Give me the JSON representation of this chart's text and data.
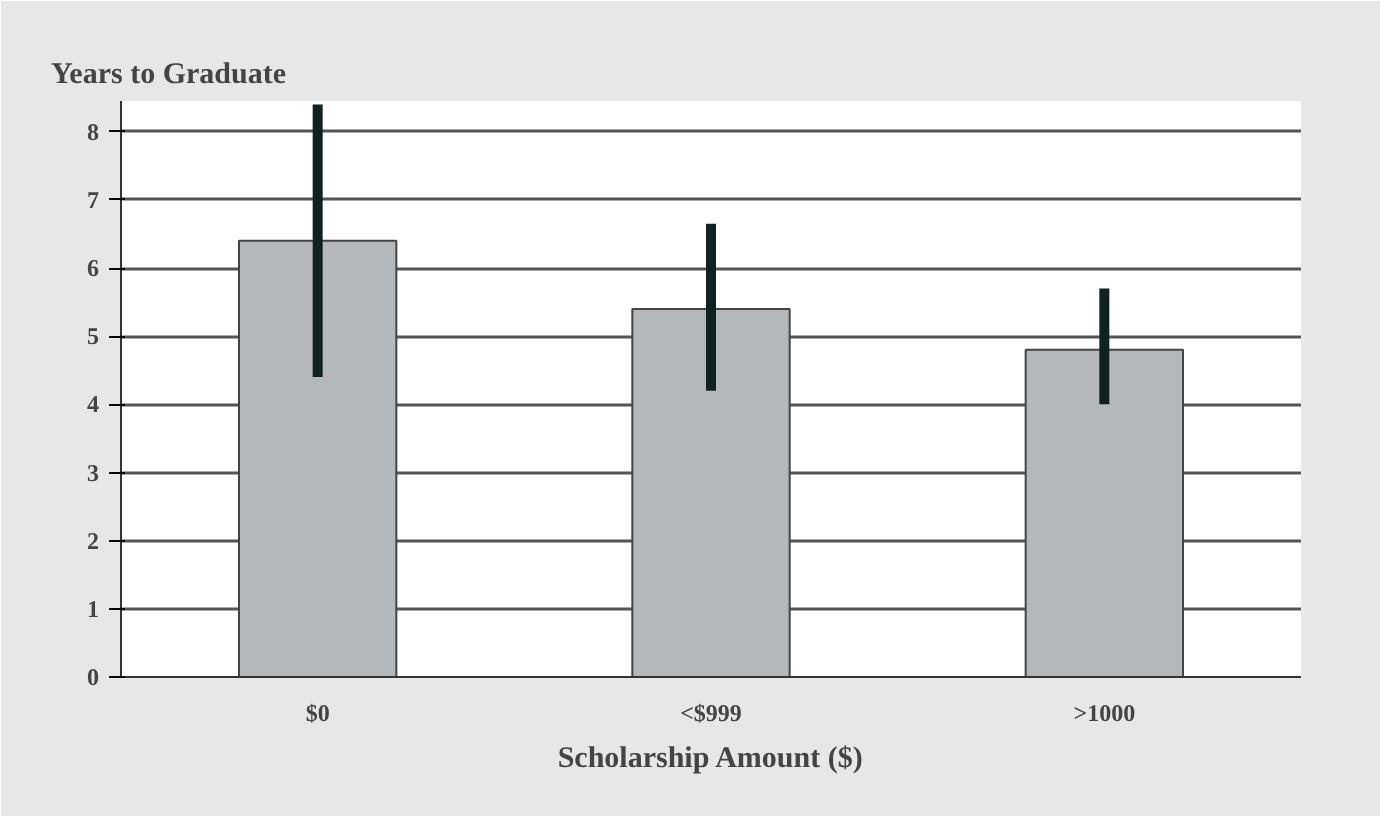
{
  "chart_data": {
    "type": "bar",
    "ylabel": "Years to Graduate",
    "xlabel": "Scholarship Amount ($)",
    "categories": [
      "$0",
      "<$999",
      ">1000"
    ],
    "values": [
      6.4,
      5.4,
      4.8
    ],
    "errors": [
      [
        4.4,
        8.4
      ],
      [
        4.2,
        6.65
      ],
      [
        4.0,
        5.7
      ]
    ],
    "color": "#b4b8bb",
    "ylim": [
      0,
      8.45
    ],
    "yticks": [
      0,
      1,
      2,
      3,
      4,
      5,
      6,
      7,
      8
    ],
    "grid": "y"
  }
}
